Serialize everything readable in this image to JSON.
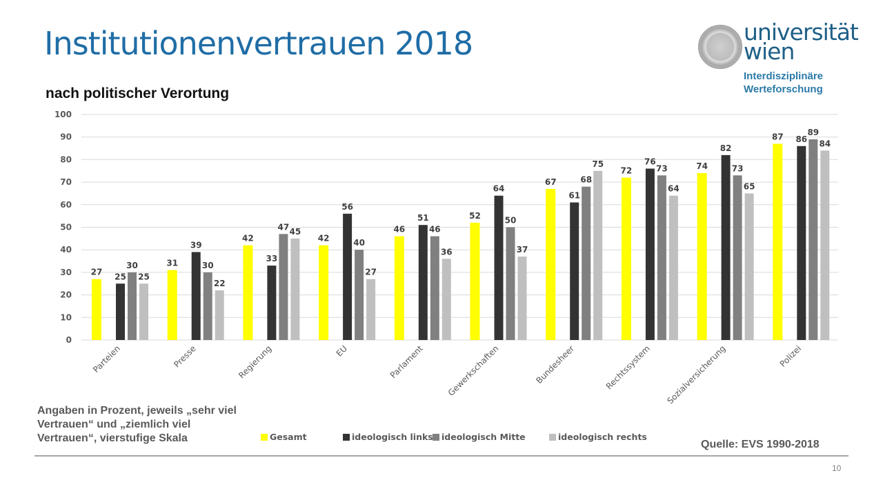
{
  "slide": {
    "title": "Institutionenvertrauen 2018",
    "subtitle": "nach politischer Verortung",
    "note": "Angaben in Prozent, jeweils „sehr viel Vertrauen“ und „ziemlich viel Vertrauen“, vierstufige Skala",
    "source": "Quelle: EVS 1990-2018",
    "page_number": "10"
  },
  "logo": {
    "name_line1": "universität",
    "name_line2": "wien",
    "unit_line1": "Interdisziplinäre",
    "unit_line2": "Werteforschung",
    "brand_color": "#1f5f87",
    "icon": "university-seal-icon"
  },
  "chart_data": {
    "type": "bar",
    "title": "Institutionenvertrauen 2018",
    "subtitle": "nach politischer Verortung",
    "xlabel": "",
    "ylabel": "",
    "ylim": [
      0,
      100
    ],
    "yticks": [
      0,
      10,
      20,
      30,
      40,
      50,
      60,
      70,
      80,
      90,
      100
    ],
    "grid": true,
    "legend_position": "bottom",
    "categories": [
      "Parteien",
      "Presse",
      "Regierung",
      "EU",
      "Parlament",
      "Gewerkschaften",
      "Bundesheer",
      "Rechtssystem",
      "Sozialversicherung",
      "Polizei"
    ],
    "series": [
      {
        "name": "Gesamt",
        "color": "#ffff00",
        "values": [
          27,
          31,
          42,
          42,
          46,
          52,
          67,
          72,
          74,
          87
        ]
      },
      {
        "name": "ideologisch links",
        "color": "#333333",
        "values": [
          25,
          39,
          33,
          56,
          51,
          64,
          61,
          76,
          82,
          86
        ]
      },
      {
        "name": "ideologisch Mitte",
        "color": "#808080",
        "values": [
          30,
          30,
          47,
          40,
          46,
          50,
          68,
          73,
          73,
          89
        ]
      },
      {
        "name": "ideologisch rechts",
        "color": "#bfbfbf",
        "values": [
          25,
          22,
          45,
          27,
          36,
          37,
          75,
          64,
          65,
          84
        ]
      }
    ]
  }
}
